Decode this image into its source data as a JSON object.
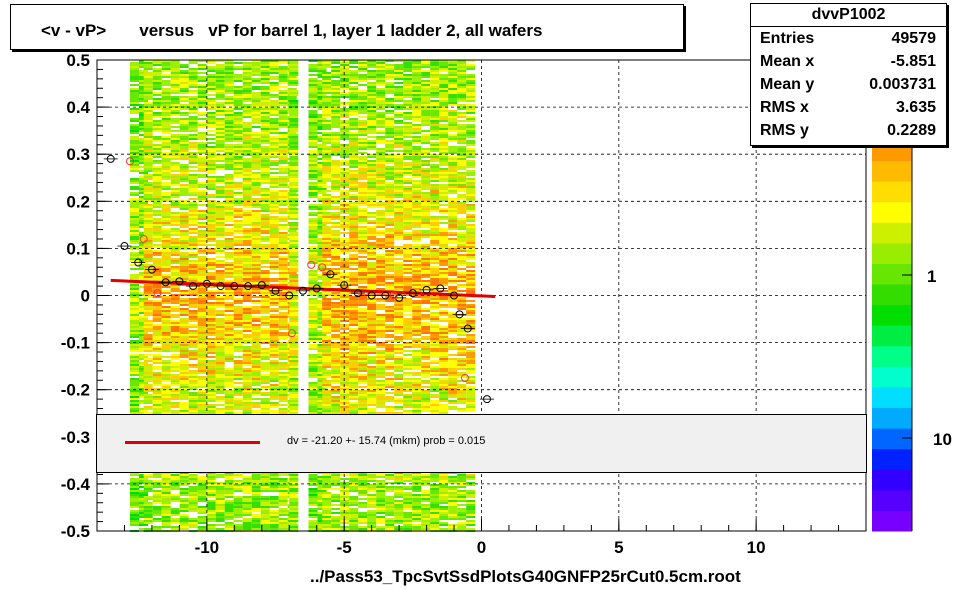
{
  "title": "<v - vP>       versus   vP for barrel 1, layer 1 ladder 2, all wafers",
  "stats": {
    "name": "dvvP1002",
    "rows": [
      {
        "k": "Entries",
        "v": "49579"
      },
      {
        "k": "Mean x",
        "v": "-5.851"
      },
      {
        "k": "Mean y",
        "v": "0.003731"
      },
      {
        "k": "RMS x",
        "v": "3.635"
      },
      {
        "k": "RMS y",
        "v": "0.2289"
      }
    ]
  },
  "fit_legend": "dv =  -21.20 +- 15.74 (mkm) prob = 0.015",
  "footer": "../Pass53_TpcSvtSsdPlotsG40GNFP25rCut0.5cm.root",
  "colors": {
    "fit": "#e00000",
    "frame": "#000000"
  },
  "chart_data": {
    "type": "heatmap",
    "xlim": [
      -14,
      14
    ],
    "ylim": [
      -0.5,
      0.5
    ],
    "xticks": [
      "-10",
      "-5",
      "0",
      "5",
      "10"
    ],
    "xtick_values": [
      -10,
      -5,
      0,
      5,
      10
    ],
    "yticks": [
      "0.5",
      "0.4",
      "0.3",
      "0.2",
      "0.1",
      "0",
      "-0.1",
      "-0.2",
      "-0.3",
      "-0.4",
      "-0.5"
    ],
    "ytick_values": [
      0.5,
      0.4,
      0.3,
      0.2,
      0.1,
      0,
      -0.1,
      -0.2,
      -0.3,
      -0.4,
      -0.5
    ],
    "grid": true,
    "colorbar_labels": [
      "1",
      "10"
    ],
    "profile_points": [
      [
        -13.5,
        0.29
      ],
      [
        -13.0,
        0.105
      ],
      [
        -12.5,
        0.07
      ],
      [
        -12.0,
        0.055
      ],
      [
        -11.5,
        0.028
      ],
      [
        -11.0,
        0.03
      ],
      [
        -10.5,
        0.02
      ],
      [
        -10.0,
        0.025
      ],
      [
        -9.5,
        0.02
      ],
      [
        -9.0,
        0.02
      ],
      [
        -8.5,
        0.02
      ],
      [
        -8.0,
        0.022
      ],
      [
        -7.5,
        0.01
      ],
      [
        -7.0,
        0.0
      ],
      [
        -6.5,
        0.01
      ],
      [
        -6.0,
        0.015
      ],
      [
        -5.5,
        0.045
      ],
      [
        -5.0,
        0.022
      ],
      [
        -4.5,
        0.005
      ],
      [
        -4.0,
        0.0
      ],
      [
        -3.5,
        0.0
      ],
      [
        -3.0,
        -0.005
      ],
      [
        -2.5,
        0.005
      ],
      [
        -2.0,
        0.012
      ],
      [
        -1.5,
        0.015
      ],
      [
        -1.0,
        0.0
      ],
      [
        -0.8,
        -0.04
      ],
      [
        -0.5,
        -0.07
      ],
      [
        0.2,
        -0.22
      ]
    ],
    "secondary_points": [
      [
        -12.8,
        0.285
      ],
      [
        -12.3,
        0.12
      ],
      [
        -11.8,
        0.005
      ],
      [
        -6.9,
        -0.08
      ],
      [
        -6.2,
        0.065
      ],
      [
        -5.8,
        0.06
      ],
      [
        -3.2,
        0.0
      ],
      [
        -0.6,
        -0.175
      ]
    ],
    "fit_line": {
      "x": [
        -13.5,
        0.5
      ],
      "y": [
        0.032,
        -0.002
      ]
    }
  }
}
